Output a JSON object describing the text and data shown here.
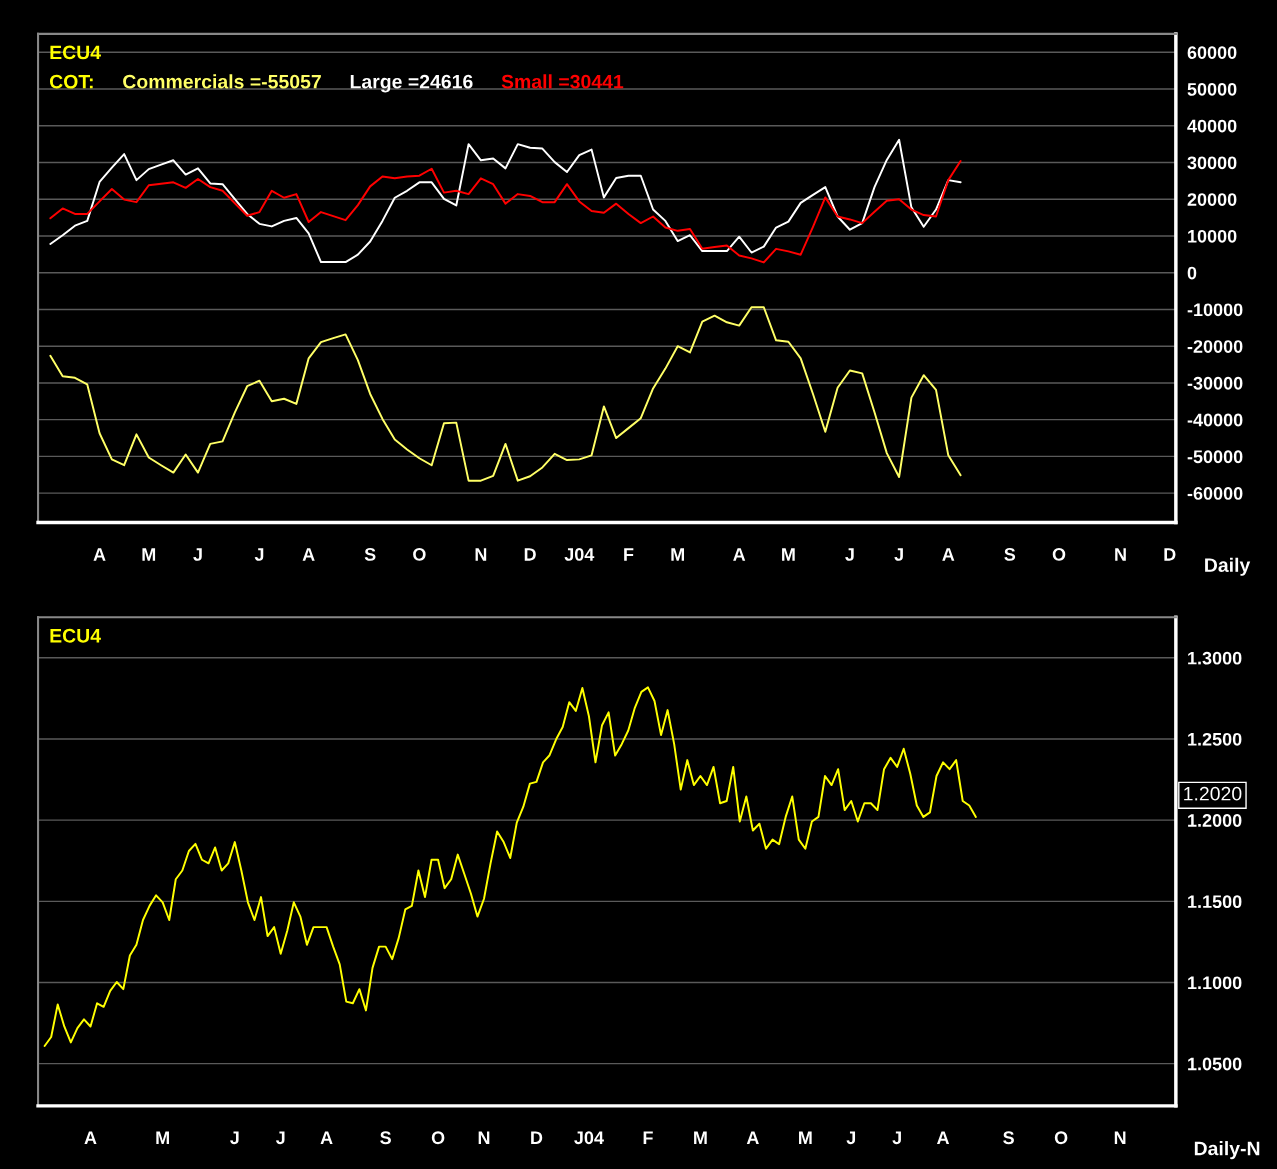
{
  "chart_data": [
    {
      "type": "line",
      "title": "ECU4",
      "legend_title": "COT:",
      "xlabel": "Daily",
      "legend": "top left",
      "grid": "y",
      "categories": [
        null,
        null,
        null,
        null,
        "A",
        null,
        null,
        null,
        "M",
        null,
        null,
        null,
        "J",
        null,
        null,
        null,
        null,
        "J",
        null,
        null,
        null,
        "A",
        null,
        null,
        null,
        null,
        "S",
        null,
        null,
        null,
        "O",
        null,
        null,
        null,
        null,
        "N",
        null,
        null,
        null,
        "D",
        null,
        null,
        null,
        "J04",
        null,
        null,
        null,
        "F",
        null,
        null,
        null,
        "M",
        null,
        null,
        null,
        null,
        "A",
        null,
        null,
        null,
        "M",
        null,
        null,
        null,
        null,
        "J",
        null,
        null,
        null,
        "J",
        null,
        null,
        null,
        "A",
        null,
        null,
        null,
        null,
        "S",
        null,
        null,
        null,
        "O",
        null,
        null,
        null,
        null,
        "N",
        null,
        null,
        null,
        "D"
      ],
      "series": [
        {
          "name": "Commercials =-55057",
          "color": "#ffff66",
          "values": [
            -22600,
            -28200,
            -28600,
            -30400,
            -43700,
            -50800,
            -52400,
            -44000,
            -50300,
            -52400,
            -54400,
            -49500,
            -54400,
            -46600,
            -45900,
            -38000,
            -30900,
            -29400,
            -35000,
            -34300,
            -35700,
            -23300,
            -18900,
            -17800,
            -16800,
            -23800,
            -33000,
            -39800,
            -45400,
            -48100,
            -50500,
            -52400,
            -41000,
            -40800,
            -56600,
            -56600,
            -55300,
            -46600,
            -56600,
            -55400,
            -53000,
            -49300,
            -51000,
            -50800,
            -49700,
            -36400,
            -45000,
            -42300,
            -39600,
            -31500,
            -26100,
            -20000,
            -21700,
            -13300,
            -11700,
            -13500,
            -14400,
            -9400,
            -9400,
            -18400,
            -18800,
            -23300,
            -33000,
            -43300,
            -31300,
            -26600,
            -27400,
            -38000,
            -49100,
            -55600,
            -34000,
            -27900,
            -31900,
            -49700,
            -55100,
            null,
            null,
            null,
            null,
            null,
            null,
            null,
            null,
            null,
            null,
            null,
            null,
            null,
            null,
            null,
            null,
            null
          ]
        },
        {
          "name": "Large =24616",
          "color": "#ffffff",
          "values": [
            7800,
            10200,
            12800,
            14100,
            24700,
            28600,
            32300,
            25200,
            28200,
            29400,
            30600,
            26700,
            28400,
            24300,
            24100,
            20000,
            16000,
            13300,
            12600,
            14100,
            14900,
            10700,
            2900,
            2900,
            2900,
            4900,
            8500,
            14100,
            20400,
            22300,
            24600,
            24600,
            20100,
            18300,
            35000,
            30600,
            31100,
            28400,
            35000,
            34000,
            33800,
            30100,
            27400,
            32000,
            33500,
            20500,
            25800,
            26400,
            26400,
            17200,
            14100,
            8600,
            10200,
            5900,
            5900,
            5900,
            9800,
            5500,
            7100,
            12300,
            13900,
            19000,
            21200,
            23300,
            15300,
            11700,
            13500,
            23300,
            30700,
            36200,
            17800,
            12500,
            17200,
            25200,
            24600,
            null,
            null,
            null,
            null,
            null,
            null,
            null,
            null,
            null,
            null,
            null,
            null,
            null,
            null,
            null,
            null,
            null
          ]
        },
        {
          "name": "Small =30441",
          "color": "#ff0000",
          "values": [
            14800,
            17500,
            16000,
            16000,
            19400,
            22800,
            19900,
            19200,
            23800,
            24200,
            24600,
            23100,
            25500,
            23300,
            22300,
            18900,
            15500,
            16500,
            22300,
            20400,
            21400,
            13800,
            16500,
            15400,
            14300,
            18400,
            23500,
            26200,
            25700,
            26200,
            26400,
            28300,
            21800,
            22300,
            21400,
            25700,
            24100,
            18800,
            21400,
            20900,
            19200,
            19200,
            24100,
            19400,
            16800,
            16300,
            18800,
            16000,
            13500,
            15300,
            12300,
            11400,
            11900,
            6500,
            7000,
            7400,
            4700,
            3900,
            2800,
            6500,
            5800,
            4900,
            12500,
            20500,
            15300,
            14500,
            13500,
            16600,
            19600,
            20000,
            17200,
            15700,
            15300,
            25200,
            30400,
            null,
            null,
            null,
            null,
            null,
            null,
            null,
            null,
            null,
            null,
            null,
            null,
            null,
            null,
            null,
            null,
            null
          ]
        }
      ],
      "ylim": [
        -68000,
        65000
      ],
      "yticks": [
        60000,
        50000,
        40000,
        30000,
        20000,
        10000,
        0,
        -10000,
        -20000,
        -30000,
        -40000,
        -50000,
        -60000
      ]
    },
    {
      "type": "line",
      "title": "ECU4",
      "xlabel": "Daily-N",
      "grid": "y",
      "categories": [
        null,
        null,
        null,
        null,
        null,
        null,
        null,
        "A",
        null,
        null,
        null,
        null,
        null,
        null,
        null,
        null,
        null,
        null,
        "M",
        null,
        null,
        null,
        null,
        null,
        null,
        null,
        null,
        null,
        null,
        "J",
        null,
        null,
        null,
        null,
        null,
        null,
        "J",
        null,
        null,
        null,
        null,
        null,
        null,
        "A",
        null,
        null,
        null,
        null,
        null,
        null,
        null,
        null,
        "S",
        null,
        null,
        null,
        null,
        null,
        null,
        null,
        "O",
        null,
        null,
        null,
        null,
        null,
        null,
        "N",
        null,
        null,
        null,
        null,
        null,
        null,
        null,
        "D",
        null,
        null,
        null,
        null,
        null,
        null,
        null,
        "J04",
        null,
        null,
        null,
        null,
        null,
        null,
        null,
        null,
        "F",
        null,
        null,
        null,
        null,
        null,
        null,
        null,
        "M",
        null,
        null,
        null,
        null,
        null,
        null,
        null,
        "A",
        null,
        null,
        null,
        null,
        null,
        null,
        null,
        "M",
        null,
        null,
        null,
        null,
        null,
        null,
        "J",
        null,
        null,
        null,
        null,
        null,
        null,
        "J",
        null,
        null,
        null,
        null,
        null,
        null,
        "A",
        null,
        null,
        null,
        null,
        null,
        null,
        null,
        null,
        null,
        "S",
        null,
        null,
        null,
        null,
        null,
        null,
        null,
        "O",
        null,
        null,
        null,
        null,
        null,
        null,
        null,
        null,
        "N",
        null,
        null,
        null,
        null,
        null,
        null,
        null,
        null
      ],
      "series": [
        {
          "color": "#ffff00",
          "values": [
            1.0609,
            1.0664,
            1.0865,
            1.0729,
            1.0631,
            1.0719,
            1.0773,
            1.0729,
            1.0872,
            1.085,
            1.0948,
            1.1003,
            1.0959,
            1.1166,
            1.1232,
            1.1385,
            1.1472,
            1.1537,
            1.1494,
            1.1385,
            1.1636,
            1.169,
            1.181,
            1.1854,
            1.1756,
            1.1734,
            1.1832,
            1.169,
            1.1734,
            1.1865,
            1.169,
            1.1494,
            1.1385,
            1.1526,
            1.1286,
            1.1341,
            1.1177,
            1.1319,
            1.1494,
            1.1406,
            1.1232,
            1.1341,
            1.1341,
            1.1341,
            1.1221,
            1.1112,
            1.0882,
            1.0872,
            1.0959,
            1.0828,
            1.109,
            1.1221,
            1.1221,
            1.1144,
            1.1275,
            1.145,
            1.1472,
            1.169,
            1.1526,
            1.1756,
            1.1756,
            1.1581,
            1.1636,
            1.1788,
            1.1668,
            1.1548,
            1.1406,
            1.1516,
            1.1734,
            1.193,
            1.1865,
            1.1767,
            1.1985,
            1.2083,
            1.2225,
            1.2236,
            1.2356,
            1.24,
            1.2498,
            1.2574,
            1.2727,
            1.2673,
            1.2814,
            1.264,
            1.2356,
            1.2585,
            1.2664,
            1.2398,
            1.2468,
            1.2552,
            1.2692,
            1.279,
            1.2818,
            1.2734,
            1.2524,
            1.2678,
            1.2468,
            1.2188,
            1.237,
            1.2216,
            1.2272,
            1.2216,
            1.2328,
            1.2104,
            1.2118,
            1.2328,
            1.1992,
            1.2146,
            1.1936,
            1.1978,
            1.1824,
            1.188,
            1.1852,
            1.202,
            1.2146,
            1.188,
            1.1824,
            1.1992,
            1.202,
            1.2272,
            1.2216,
            1.2314,
            1.2062,
            1.2118,
            1.1992,
            1.2104,
            1.2104,
            1.2062,
            1.2314,
            1.2384,
            1.2328,
            1.244,
            1.2286,
            1.209,
            1.202,
            1.2048,
            1.2272,
            1.2356,
            1.2314,
            1.237,
            1.2118,
            1.209,
            1.202,
            null,
            null,
            null,
            null,
            null,
            null,
            null,
            null,
            null,
            null,
            null,
            null,
            null,
            null,
            null,
            null,
            null,
            null,
            null,
            null,
            null,
            null,
            null,
            null,
            null,
            null,
            null,
            null,
            null,
            null
          ]
        }
      ],
      "annotations": [
        "1.2020"
      ],
      "ylim": [
        1.024,
        1.325
      ],
      "yticks": [
        {
          "value": 1.3,
          "label": "1.3000"
        },
        {
          "value": 1.25,
          "label": "1.2500"
        },
        {
          "value": 1.2,
          "label": "1.2000"
        },
        {
          "value": 1.15,
          "label": "1.1500"
        },
        {
          "value": 1.1,
          "label": "1.1000"
        },
        {
          "value": 1.05,
          "label": "1.0500"
        }
      ]
    }
  ]
}
